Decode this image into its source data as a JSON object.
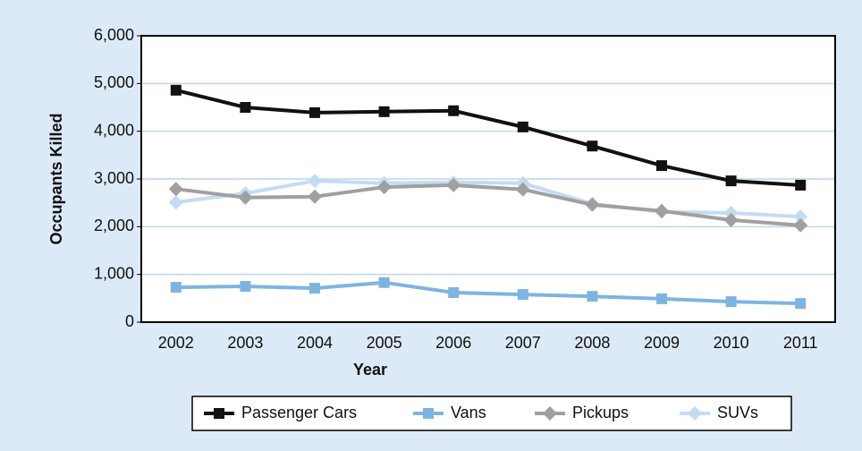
{
  "chart_data": {
    "type": "line",
    "x_label": "Year",
    "y_label": "Occupants Killed",
    "categories": [
      "2002",
      "2003",
      "2004",
      "2005",
      "2006",
      "2007",
      "2008",
      "2009",
      "2010",
      "2011"
    ],
    "series": [
      {
        "name": "Passenger Cars",
        "color": "#111111",
        "marker": "square",
        "values": [
          4860,
          4500,
          4390,
          4410,
          4430,
          4090,
          3690,
          3280,
          2960,
          2870
        ]
      },
      {
        "name": "Vans",
        "color": "#7fb4e0",
        "marker": "square",
        "values": [
          730,
          750,
          710,
          830,
          620,
          580,
          540,
          490,
          430,
          390
        ]
      },
      {
        "name": "Pickups",
        "color": "#a0a0a0",
        "marker": "diamond",
        "values": [
          2790,
          2610,
          2630,
          2830,
          2870,
          2780,
          2460,
          2330,
          2140,
          2030
        ]
      },
      {
        "name": "SUVs",
        "color": "#c4dcf3",
        "marker": "diamond",
        "values": [
          2510,
          2700,
          2960,
          2910,
          2930,
          2910,
          2480,
          2310,
          2290,
          2210
        ]
      }
    ],
    "ylim": [
      0,
      6000
    ],
    "yticks": [
      0,
      {
        "value": 1000,
        "label": "1,000"
      },
      {
        "value": 2000,
        "label": "2,000"
      },
      {
        "value": 3000,
        "label": "3,000"
      },
      {
        "value": 4000,
        "label": "4,000"
      },
      {
        "value": 5000,
        "label": "5,000"
      },
      {
        "value": 6000,
        "label": "6,000"
      }
    ],
    "grid": true,
    "legend": "bottom"
  }
}
